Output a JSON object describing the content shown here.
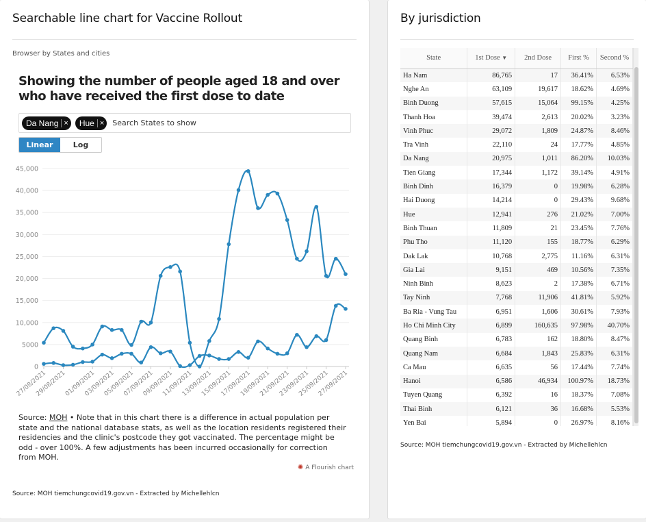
{
  "left_card": {
    "title": "Searchable line chart for Vaccine Rollout",
    "subtitle": "Browser by States and cities",
    "chart_heading": "Showing the number of people aged 18 and over who have received the first dose to date",
    "search": {
      "chips": [
        {
          "label": "Da Nang"
        },
        {
          "label": "Hue"
        }
      ],
      "chip_remove": "×",
      "placeholder": "Search States to show"
    },
    "scale": {
      "linear": "Linear",
      "log": "Log",
      "active": "linear"
    },
    "note_prefix": "Source: ",
    "note_link": "MOH",
    "note_text": " • Note that in this chart there is a difference in actual population per state and the national database stats, as well as the location residents registered their residencies and the clinic's postcode they got vaccinated. The percentage might be odd - over 100%. A few adjustments has been incurred occasionally for correction from MOH.",
    "flourish": "A Flourish chart",
    "footer": "Source: MOH tiemchungcovid19.gov.vn - Extracted by Michellehlcn"
  },
  "chart_data": {
    "type": "line",
    "title": "Showing the number of people aged 18 and over who have received the first dose to date",
    "xlabel": "",
    "ylabel": "",
    "ylim": [
      0,
      45000
    ],
    "yticks": [
      0,
      5000,
      10000,
      15000,
      20000,
      25000,
      30000,
      35000,
      40000,
      45000
    ],
    "ytick_labels": [
      "0",
      "5000",
      "10,000",
      "15,000",
      "20,000",
      "25,000",
      "30,000",
      "35,000",
      "40,000",
      "45,000"
    ],
    "xtick_labels": [
      "27/08/2021",
      "29/08/2021",
      "01/09/2021",
      "03/09/2021",
      "05/09/2021",
      "07/09/2021",
      "09/09/2021",
      "11/09/2021",
      "13/09/2021",
      "15/09/2021",
      "17/09/2021",
      "19/09/2021",
      "21/09/2021",
      "23/09/2021",
      "25/09/2021",
      "27/09/2021"
    ],
    "x": [
      "27/08/2021",
      "28/08/2021",
      "29/08/2021",
      "30/08/2021",
      "31/08/2021",
      "01/09/2021",
      "02/09/2021",
      "03/09/2021",
      "04/09/2021",
      "05/09/2021",
      "06/09/2021",
      "07/09/2021",
      "08/09/2021",
      "09/09/2021",
      "10/09/2021",
      "11/09/2021",
      "12/09/2021",
      "13/09/2021",
      "14/09/2021",
      "15/09/2021",
      "16/09/2021",
      "17/09/2021",
      "18/09/2021",
      "19/09/2021",
      "20/09/2021",
      "21/09/2021",
      "22/09/2021",
      "23/09/2021",
      "24/09/2021",
      "25/09/2021",
      "26/09/2021",
      "27/09/2021"
    ],
    "series": [
      {
        "values": [
          5400,
          8700,
          8100,
          4500,
          4100,
          5000,
          9100,
          8300,
          8300,
          4900,
          10200,
          10000,
          20600,
          22600,
          21600,
          5400,
          0,
          5800,
          10800,
          27800,
          40100,
          44400,
          36000,
          39000,
          39300,
          33300,
          24500,
          26200,
          36300,
          20600,
          24500,
          21000
        ],
        "color": "#2b88bf"
      },
      {
        "values": [
          600,
          800,
          300,
          400,
          1000,
          1100,
          2700,
          1900,
          2900,
          2900,
          900,
          4400,
          3000,
          3400,
          100,
          300,
          2400,
          2500,
          1700,
          1700,
          3300,
          2000,
          5700,
          4100,
          2900,
          3000,
          7200,
          4400,
          6900,
          6000,
          13800,
          13100
        ],
        "color": "#2b88bf"
      }
    ]
  },
  "right_card": {
    "title": "By jurisdiction",
    "columns": [
      "State",
      "1st Dose",
      "2nd Dose",
      "First %",
      "Second %"
    ],
    "sort_indicator": "▼",
    "rows": [
      [
        "Ha Nam",
        "86,765",
        "17",
        "36.41%",
        "6.53%"
      ],
      [
        "Nghe An",
        "63,109",
        "19,617",
        "18.62%",
        "4.69%"
      ],
      [
        "Binh Duong",
        "57,615",
        "15,064",
        "99.15%",
        "4.25%"
      ],
      [
        "Thanh Hoa",
        "39,474",
        "2,613",
        "20.02%",
        "3.23%"
      ],
      [
        "Vinh Phuc",
        "29,072",
        "1,809",
        "24.87%",
        "8.46%"
      ],
      [
        "Tra Vinh",
        "22,110",
        "24",
        "17.77%",
        "4.85%"
      ],
      [
        "Da Nang",
        "20,975",
        "1,011",
        "86.20%",
        "10.03%"
      ],
      [
        "Tien Giang",
        "17,344",
        "1,172",
        "39.14%",
        "4.91%"
      ],
      [
        "Binh Dinh",
        "16,379",
        "0",
        "19.98%",
        "6.28%"
      ],
      [
        "Hai Duong",
        "14,214",
        "0",
        "29.43%",
        "9.68%"
      ],
      [
        "Hue",
        "12,941",
        "276",
        "21.02%",
        "7.00%"
      ],
      [
        "Binh Thuan",
        "11,809",
        "21",
        "23.45%",
        "7.76%"
      ],
      [
        "Phu Tho",
        "11,120",
        "155",
        "18.77%",
        "6.29%"
      ],
      [
        "Dak Lak",
        "10,768",
        "2,775",
        "11.16%",
        "6.31%"
      ],
      [
        "Gia Lai",
        "9,151",
        "469",
        "10.56%",
        "7.35%"
      ],
      [
        "Ninh Binh",
        "8,623",
        "2",
        "17.38%",
        "6.71%"
      ],
      [
        "Tay Ninh",
        "7,768",
        "11,906",
        "41.81%",
        "5.92%"
      ],
      [
        "Ba Ria - Vung Tau",
        "6,951",
        "1,606",
        "30.61%",
        "7.93%"
      ],
      [
        "Ho Chi Minh City",
        "6,899",
        "160,635",
        "97.98%",
        "40.70%"
      ],
      [
        "Quang Binh",
        "6,783",
        "162",
        "18.80%",
        "8.47%"
      ],
      [
        "Quang Nam",
        "6,684",
        "1,843",
        "25.83%",
        "6.31%"
      ],
      [
        "Ca Mau",
        "6,635",
        "56",
        "17.44%",
        "7.74%"
      ],
      [
        "Hanoi",
        "6,586",
        "46,934",
        "100.97%",
        "18.73%"
      ],
      [
        "Tuyen Quang",
        "6,392",
        "16",
        "18.37%",
        "7.08%"
      ],
      [
        "Thai Binh",
        "6,121",
        "36",
        "16.68%",
        "5.53%"
      ],
      [
        "Yen Bai",
        "5,894",
        "0",
        "26.97%",
        "8.16%"
      ]
    ],
    "footer": "Source: MOH tiemchungcovid19.gov.vn - Extracted by Michellehlcn"
  }
}
